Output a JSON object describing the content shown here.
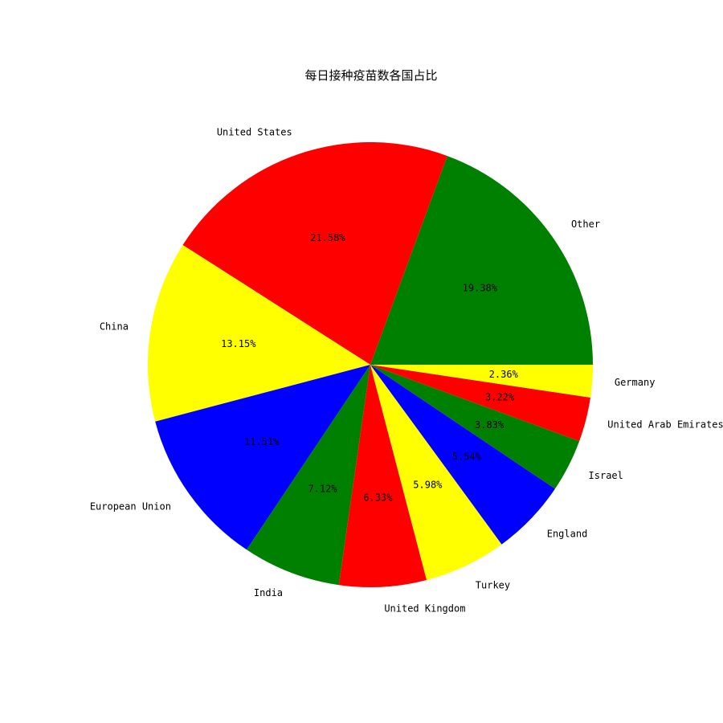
{
  "chart_data": {
    "type": "pie",
    "title": "每日接种疫苗数各国占比",
    "start_angle_deg": 0,
    "direction": "counterclockwise",
    "slices": [
      {
        "label": "Other",
        "value": 19.38,
        "pct_label": "19.38%",
        "color": "#008000"
      },
      {
        "label": "United States",
        "value": 21.58,
        "pct_label": "21.58%",
        "color": "#ff0000"
      },
      {
        "label": "China",
        "value": 13.15,
        "pct_label": "13.15%",
        "color": "#ffff00"
      },
      {
        "label": "European Union",
        "value": 11.51,
        "pct_label": "11.51%",
        "color": "#0000ff"
      },
      {
        "label": "India",
        "value": 7.12,
        "pct_label": "7.12%",
        "color": "#008000"
      },
      {
        "label": "United Kingdom",
        "value": 6.33,
        "pct_label": "6.33%",
        "color": "#ff0000"
      },
      {
        "label": "Turkey",
        "value": 5.98,
        "pct_label": "5.98%",
        "color": "#ffff00"
      },
      {
        "label": "England",
        "value": 5.54,
        "pct_label": "5.54%",
        "color": "#0000ff"
      },
      {
        "label": "Israel",
        "value": 3.83,
        "pct_label": "3.83%",
        "color": "#008000"
      },
      {
        "label": "United Arab Emirates",
        "value": 3.22,
        "pct_label": "3.22%",
        "color": "#ff0000"
      },
      {
        "label": "Germany",
        "value": 2.36,
        "pct_label": "2.36%",
        "color": "#ffff00"
      }
    ]
  }
}
